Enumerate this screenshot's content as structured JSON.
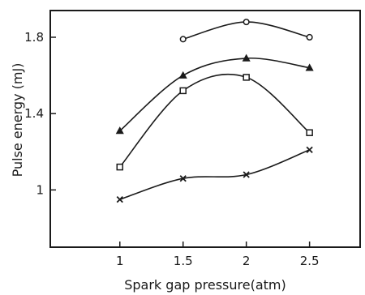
{
  "chart_data": {
    "type": "line",
    "title": "",
    "xlabel": "Spark gap pressure(atm)",
    "ylabel": "Pulse energy (mJ)",
    "x_ticks": [
      1,
      1.5,
      2,
      2.5
    ],
    "x_tick_labels": [
      "1",
      "1.5",
      "2",
      "2.5"
    ],
    "y_ticks": [
      1,
      1.4,
      1.8
    ],
    "y_tick_labels": [
      "1",
      "1.4",
      "1.8"
    ],
    "xlim": [
      0.45,
      2.9
    ],
    "ylim": [
      0.7,
      1.94
    ],
    "grid": false,
    "legend": "none",
    "series": [
      {
        "marker": "open-circle",
        "x": [
          1.5,
          2,
          2.5
        ],
        "y": [
          1.79,
          1.88,
          1.8
        ]
      },
      {
        "marker": "filled-triangle",
        "x": [
          1,
          1.5,
          2,
          2.5
        ],
        "y": [
          1.31,
          1.6,
          1.69,
          1.64
        ]
      },
      {
        "marker": "open-square",
        "x": [
          1,
          1.5,
          2,
          2.5
        ],
        "y": [
          1.12,
          1.52,
          1.59,
          1.3
        ]
      },
      {
        "marker": "x",
        "x": [
          1,
          1.5,
          2,
          2.5
        ],
        "y": [
          0.95,
          1.06,
          1.08,
          1.21
        ]
      }
    ],
    "colors": {
      "ink": "#1a1a1a",
      "background": "#ffffff"
    }
  }
}
